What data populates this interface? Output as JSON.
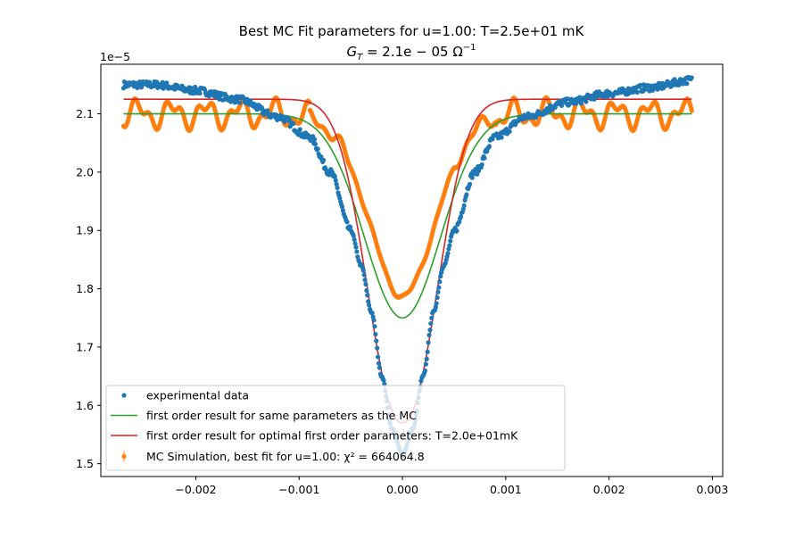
{
  "chart_data": {
    "type": "scatter",
    "title": "Best MC Fit parameters for u=1.00:  T=2.5e+01 mK",
    "subtitle_plain": "G",
    "subtitle_sub": "T",
    "subtitle_value": " = 2.1e − 05 Ω",
    "subtitle_sup": "−1",
    "y_offset_label": "1e−5",
    "xlim": [
      -0.00292,
      0.0031
    ],
    "ylim": [
      1.478,
      2.185
    ],
    "x_ticks": [
      {
        "value": -0.002,
        "label": "−0.002"
      },
      {
        "value": -0.001,
        "label": "−0.001"
      },
      {
        "value": 0.0,
        "label": "0.000"
      },
      {
        "value": 0.001,
        "label": "0.001"
      },
      {
        "value": 0.002,
        "label": "0.002"
      },
      {
        "value": 0.003,
        "label": "0.003"
      }
    ],
    "y_ticks": [
      {
        "value": 1.5,
        "label": "1.5"
      },
      {
        "value": 1.6,
        "label": "1.6"
      },
      {
        "value": 1.7,
        "label": "1.7"
      },
      {
        "value": 1.8,
        "label": "1.8"
      },
      {
        "value": 1.9,
        "label": "1.9"
      },
      {
        "value": 2.0,
        "label": "2.0"
      },
      {
        "value": 2.1,
        "label": "2.1"
      }
    ],
    "grid": false,
    "legend_position": "lower-left",
    "x_range_data": [
      -0.0027,
      0.0028
    ],
    "series": [
      {
        "name": "experimental data",
        "kind": "scatter",
        "color": "#1f77b4",
        "x": [
          -0.0027,
          -0.0024,
          -0.002,
          -0.0016,
          -0.0012,
          -0.0009,
          -0.0007,
          -0.0005,
          -0.0004,
          -0.0003,
          -0.0002,
          -0.0001,
          0.0,
          0.0001,
          0.0002,
          0.0003,
          0.0004,
          0.0005,
          0.0007,
          0.0009,
          0.0012,
          0.0016,
          0.002,
          0.0024,
          0.0028
        ],
        "y": [
          2.15,
          2.15,
          2.14,
          2.125,
          2.095,
          2.06,
          2.0,
          1.9,
          1.84,
          1.76,
          1.65,
          1.56,
          1.515,
          1.56,
          1.65,
          1.76,
          1.84,
          1.9,
          2.0,
          2.06,
          2.095,
          2.12,
          2.135,
          2.145,
          2.158
        ]
      },
      {
        "name": "first order result for same parameters as the MC",
        "kind": "line",
        "color": "#2ca02c",
        "center": 0.0,
        "baseline": 2.1,
        "minimum": 1.75
      },
      {
        "name": "first order result for optimal first order parameters: T=2.0e+01mK",
        "kind": "line",
        "color": "#d62728",
        "center": 0.0,
        "baseline": 2.125,
        "minimum": 1.57
      },
      {
        "name": "MC Simulation, best fit for u=1.00:  χ² = 664064.8",
        "kind": "errorbar",
        "color": "#ff7f0e",
        "center": 0.0,
        "baseline": 2.1,
        "minimum": 1.786
      }
    ],
    "legend": [
      {
        "label": "experimental data",
        "marker": "dot",
        "color": "#1f77b4"
      },
      {
        "label": "first order result for same parameters as the MC",
        "marker": "line",
        "color": "#2ca02c"
      },
      {
        "label": "first order result for optimal first order parameters: T=2.0e+01mK",
        "marker": "line",
        "color": "#d62728"
      },
      {
        "label": "MC Simulation, best fit for u=1.00:  χ² = 664064.8",
        "marker": "errorbar",
        "color": "#ff7f0e"
      }
    ]
  }
}
